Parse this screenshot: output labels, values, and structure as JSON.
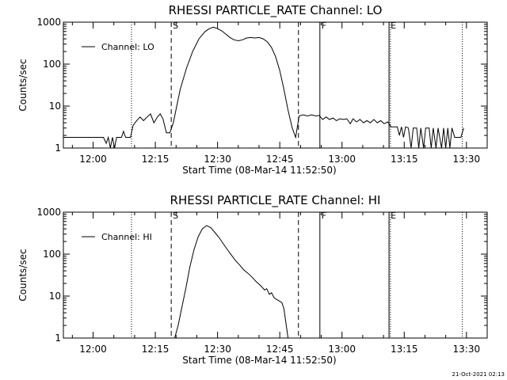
{
  "footer_timestamp": "21-Oct-2021 02:13",
  "chart_data": [
    {
      "type": "line",
      "title": "RHESSI PARTICLE_RATE Channel: LO",
      "xlabel": "Start Time (08-Mar-14 11:52:50)",
      "ylabel": "Counts/sec",
      "yscale": "log",
      "ylim": [
        1,
        1000
      ],
      "xlim": [
        "11:52:50",
        "13:35:00"
      ],
      "x_ticks": [
        "12:00",
        "12:15",
        "12:30",
        "12:45",
        "13:00",
        "13:15",
        "13:30"
      ],
      "y_ticks": [
        "1",
        "10",
        "100",
        "1000"
      ],
      "legend": {
        "position": "top-left",
        "entries": [
          "Channel: LO"
        ]
      },
      "markers": [
        {
          "label": "",
          "time": "12:09:15",
          "style": "dotted"
        },
        {
          "label": "S",
          "time": "12:18:50",
          "style": "dashed"
        },
        {
          "label": "",
          "time": "12:49:30",
          "style": "dashed"
        },
        {
          "label": "F",
          "time": "12:54:40",
          "style": "solid"
        },
        {
          "label": "E",
          "time": "13:11:20",
          "style": "solid"
        },
        {
          "label": "",
          "time": "13:11:40",
          "style": "dotted"
        },
        {
          "label": "",
          "time": "13:29:00",
          "style": "dotted"
        }
      ],
      "series": [
        {
          "name": "Channel: LO",
          "points": [
            [
              "11:52:50",
              1.8
            ],
            [
              "12:02:30",
              1.8
            ],
            [
              "12:03:10",
              1.3
            ],
            [
              "12:03:40",
              1.8
            ],
            [
              "12:04:10",
              1.0
            ],
            [
              "12:04:40",
              1.8
            ],
            [
              "12:05:10",
              1.0
            ],
            [
              "12:05:40",
              1.8
            ],
            [
              "12:06:50",
              1.8
            ],
            [
              "12:07:20",
              2.5
            ],
            [
              "12:07:50",
              1.8
            ],
            [
              "12:09:00",
              1.8
            ],
            [
              "12:09:40",
              3.5
            ],
            [
              "12:10:30",
              4.5
            ],
            [
              "12:11:20",
              5.5
            ],
            [
              "12:12:10",
              4.5
            ],
            [
              "12:13:00",
              5.5
            ],
            [
              "12:13:50",
              6.5
            ],
            [
              "12:14:40",
              4.0
            ],
            [
              "12:15:30",
              5.5
            ],
            [
              "12:16:10",
              6.5
            ],
            [
              "12:16:50",
              5.0
            ],
            [
              "12:17:40",
              2.3
            ],
            [
              "12:18:30",
              2.3
            ],
            [
              "12:19:20",
              4.0
            ],
            [
              "12:20:10",
              10
            ],
            [
              "12:21:00",
              25
            ],
            [
              "12:22:30",
              80
            ],
            [
              "12:24:00",
              200
            ],
            [
              "12:25:30",
              400
            ],
            [
              "12:27:00",
              600
            ],
            [
              "12:28:00",
              700
            ],
            [
              "12:29:00",
              760
            ],
            [
              "12:30:00",
              700
            ],
            [
              "12:31:00",
              620
            ],
            [
              "12:32:00",
              520
            ],
            [
              "12:33:00",
              430
            ],
            [
              "12:34:00",
              380
            ],
            [
              "12:35:00",
              360
            ],
            [
              "12:36:00",
              380
            ],
            [
              "12:37:00",
              420
            ],
            [
              "12:38:00",
              430
            ],
            [
              "12:39:00",
              420
            ],
            [
              "12:40:00",
              430
            ],
            [
              "12:41:00",
              400
            ],
            [
              "12:42:00",
              340
            ],
            [
              "12:43:00",
              250
            ],
            [
              "12:44:00",
              150
            ],
            [
              "12:45:00",
              70
            ],
            [
              "12:46:00",
              25
            ],
            [
              "12:47:00",
              8
            ],
            [
              "12:48:00",
              3
            ],
            [
              "12:48:50",
              1.8
            ],
            [
              "12:49:40",
              5.8
            ],
            [
              "12:50:40",
              6.2
            ],
            [
              "12:51:40",
              5.8
            ],
            [
              "12:52:40",
              6.2
            ],
            [
              "12:53:40",
              5.8
            ],
            [
              "12:54:30",
              6.0
            ],
            [
              "12:55:20",
              4.8
            ],
            [
              "12:56:10",
              5.5
            ],
            [
              "12:57:00",
              4.8
            ],
            [
              "12:57:50",
              5.2
            ],
            [
              "12:58:40",
              4.5
            ],
            [
              "12:59:30",
              5.0
            ],
            [
              "13:00:20",
              4.8
            ],
            [
              "13:01:10",
              5.0
            ],
            [
              "13:02:00",
              3.8
            ],
            [
              "13:02:40",
              5.0
            ],
            [
              "13:03:30",
              4.2
            ],
            [
              "13:04:20",
              4.8
            ],
            [
              "13:05:10",
              4.0
            ],
            [
              "13:06:00",
              4.5
            ],
            [
              "13:06:50",
              4.0
            ],
            [
              "13:07:40",
              4.8
            ],
            [
              "13:08:30",
              4.0
            ],
            [
              "13:09:20",
              4.5
            ],
            [
              "13:10:10",
              3.8
            ],
            [
              "13:11:00",
              4.2
            ],
            [
              "13:11:50",
              3.2
            ],
            [
              "13:13:20",
              3.2
            ],
            [
              "13:13:50",
              2.0
            ],
            [
              "13:14:20",
              3.2
            ],
            [
              "13:14:50",
              1.8
            ],
            [
              "13:15:20",
              3.2
            ],
            [
              "13:16:00",
              3.0
            ],
            [
              "13:16:40",
              1.0
            ],
            [
              "13:17:10",
              3.0
            ],
            [
              "13:18:00",
              3.0
            ],
            [
              "13:18:30",
              1.0
            ],
            [
              "13:19:00",
              3.0
            ],
            [
              "13:19:40",
              1.0
            ],
            [
              "13:20:10",
              3.0
            ],
            [
              "13:21:00",
              3.0
            ],
            [
              "13:21:30",
              1.0
            ],
            [
              "13:22:00",
              3.0
            ],
            [
              "13:22:40",
              1.0
            ],
            [
              "13:23:10",
              3.0
            ],
            [
              "13:24:00",
              1.0
            ],
            [
              "13:24:30",
              3.0
            ],
            [
              "13:25:00",
              1.0
            ],
            [
              "13:25:30",
              3.0
            ],
            [
              "13:26:00",
              1.0
            ],
            [
              "13:26:30",
              3.0
            ],
            [
              "13:27:10",
              1.8
            ],
            [
              "13:28:40",
              1.8
            ],
            [
              "13:29:20",
              3.0
            ]
          ]
        }
      ]
    },
    {
      "type": "line",
      "title": "RHESSI PARTICLE_RATE Channel: HI",
      "xlabel": "Start Time (08-Mar-14 11:52:50)",
      "ylabel": "Counts/sec",
      "yscale": "log",
      "ylim": [
        1,
        1000
      ],
      "xlim": [
        "11:52:50",
        "13:35:00"
      ],
      "x_ticks": [
        "12:00",
        "12:15",
        "12:30",
        "12:45",
        "13:00",
        "13:15",
        "13:30"
      ],
      "y_ticks": [
        "1",
        "10",
        "100",
        "1000"
      ],
      "legend": {
        "position": "top-left",
        "entries": [
          "Channel: HI"
        ]
      },
      "markers": [
        {
          "label": "",
          "time": "12:09:15",
          "style": "dotted"
        },
        {
          "label": "S",
          "time": "12:18:50",
          "style": "dashed"
        },
        {
          "label": "",
          "time": "12:49:30",
          "style": "dashed"
        },
        {
          "label": "F",
          "time": "12:54:40",
          "style": "solid"
        },
        {
          "label": "E",
          "time": "13:11:20",
          "style": "solid"
        },
        {
          "label": "",
          "time": "13:11:40",
          "style": "dotted"
        },
        {
          "label": "",
          "time": "13:29:00",
          "style": "dotted"
        }
      ],
      "series": [
        {
          "name": "Channel: HI",
          "points": [
            [
              "12:19:40",
              1.0
            ],
            [
              "12:20:30",
              2.0
            ],
            [
              "12:21:20",
              5.0
            ],
            [
              "12:22:20",
              15
            ],
            [
              "12:23:20",
              50
            ],
            [
              "12:24:20",
              130
            ],
            [
              "12:25:20",
              260
            ],
            [
              "12:26:20",
              400
            ],
            [
              "12:27:20",
              480
            ],
            [
              "12:28:20",
              430
            ],
            [
              "12:29:20",
              330
            ],
            [
              "12:30:20",
              250
            ],
            [
              "12:31:20",
              180
            ],
            [
              "12:32:20",
              130
            ],
            [
              "12:33:20",
              95
            ],
            [
              "12:34:20",
              70
            ],
            [
              "12:35:20",
              55
            ],
            [
              "12:36:20",
              42
            ],
            [
              "12:37:20",
              35
            ],
            [
              "12:38:20",
              28
            ],
            [
              "12:39:20",
              22
            ],
            [
              "12:40:20",
              18
            ],
            [
              "12:41:20",
              14
            ],
            [
              "12:41:50",
              15
            ],
            [
              "12:42:30",
              11
            ],
            [
              "12:43:00",
              12
            ],
            [
              "12:43:40",
              9
            ],
            [
              "12:44:30",
              8
            ],
            [
              "12:45:30",
              7
            ],
            [
              "12:46:00",
              5
            ],
            [
              "12:47:00",
              1.0
            ]
          ]
        }
      ]
    }
  ]
}
